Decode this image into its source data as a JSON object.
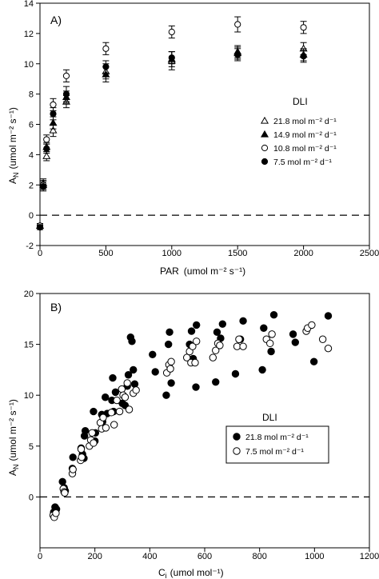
{
  "chart_data": [
    {
      "type": "scatter",
      "panel_label": "A)",
      "xlabel": "PAR",
      "xunits": "(umol m⁻² s⁻¹)",
      "ylabel": "A",
      "ylabel_sub": "N",
      "yunits": "(umol m⁻² s⁻¹)",
      "xlim": [
        0,
        2500
      ],
      "ylim": [
        -2,
        14
      ],
      "xticks": [
        0,
        500,
        1000,
        1500,
        2000,
        2500
      ],
      "yticks": [
        -2,
        0,
        2,
        4,
        6,
        8,
        10,
        12,
        14
      ],
      "reference_line": {
        "y": 0,
        "style": "dashed"
      },
      "legend": {
        "title": "DLI",
        "position": "middle-right"
      },
      "series": [
        {
          "name": "21.8 mol m⁻² d⁻¹",
          "marker": "open-triangle",
          "x": [
            0,
            25,
            50,
            100,
            200,
            500,
            1000,
            1500,
            2000
          ],
          "y": [
            -0.7,
            2.0,
            3.9,
            5.6,
            7.5,
            9.5,
            10.2,
            10.8,
            11.0
          ],
          "err": [
            0.15,
            0.3,
            0.3,
            0.4,
            0.4,
            0.5,
            0.6,
            0.4,
            0.4
          ]
        },
        {
          "name": "14.9 mol m⁻² d⁻¹",
          "marker": "filled-triangle",
          "x": [
            0,
            25,
            50,
            100,
            200,
            500,
            1000,
            1500,
            2000
          ],
          "y": [
            -0.7,
            2.1,
            4.5,
            6.1,
            7.8,
            9.3,
            10.3,
            10.7,
            10.6
          ],
          "err": [
            0.15,
            0.3,
            0.3,
            0.4,
            0.4,
            0.5,
            0.5,
            0.4,
            0.4
          ]
        },
        {
          "name": "10.8 mol m⁻² d⁻¹",
          "marker": "open-circle",
          "x": [
            0,
            25,
            50,
            100,
            200,
            500,
            1000,
            1500,
            2000
          ],
          "y": [
            -0.7,
            2.0,
            5.0,
            7.3,
            9.2,
            11.0,
            12.1,
            12.6,
            12.4
          ],
          "err": [
            0.15,
            0.3,
            0.3,
            0.4,
            0.4,
            0.4,
            0.4,
            0.5,
            0.4
          ]
        },
        {
          "name": "7.5 mol m⁻² d⁻¹",
          "marker": "filled-circle",
          "x": [
            0,
            25,
            50,
            100,
            200,
            500,
            1000,
            1500,
            2000
          ],
          "y": [
            -0.8,
            1.9,
            4.4,
            6.7,
            8.0,
            9.8,
            10.4,
            10.6,
            10.5
          ],
          "err": [
            0.15,
            0.3,
            0.3,
            0.4,
            0.5,
            0.4,
            0.4,
            0.4,
            0.4
          ]
        }
      ]
    },
    {
      "type": "scatter",
      "panel_label": "B)",
      "xlabel": "C",
      "xlabel_sub": "i",
      "xunits": "(umol mol⁻¹)",
      "ylabel": "A",
      "ylabel_sub": "N",
      "yunits": "(umol m⁻² s⁻¹)",
      "xlim": [
        0,
        1200
      ],
      "ylim": [
        -5,
        20
      ],
      "xticks": [
        0,
        200,
        400,
        600,
        800,
        1000,
        1200
      ],
      "yticks": [
        0,
        5,
        10,
        15,
        20
      ],
      "reference_line": {
        "y": 0,
        "style": "dashed"
      },
      "legend": {
        "title": "DLI",
        "position": "middle-right"
      },
      "series": [
        {
          "name": "21.8 mol m⁻² d⁻¹",
          "marker": "filled-circle",
          "points": [
            [
              50,
              -1.5
            ],
            [
              55,
              -1.0
            ],
            [
              60,
              -1.2
            ],
            [
              82,
              1.5
            ],
            [
              88,
              0.9
            ],
            [
              92,
              0.6
            ],
            [
              118,
              2.8
            ],
            [
              120,
              3.9
            ],
            [
              150,
              4.8
            ],
            [
              155,
              4.2
            ],
            [
              160,
              3.8
            ],
            [
              162,
              6.0
            ],
            [
              165,
              6.5
            ],
            [
              195,
              8.4
            ],
            [
              200,
              5.5
            ],
            [
              202,
              6.3
            ],
            [
              225,
              8.1
            ],
            [
              228,
              7.4
            ],
            [
              238,
              9.8
            ],
            [
              245,
              8.2
            ],
            [
              262,
              9.5
            ],
            [
              265,
              11.7
            ],
            [
              268,
              8.4
            ],
            [
              275,
              10.3
            ],
            [
              300,
              9.2
            ],
            [
              310,
              9.0
            ],
            [
              318,
              10.9
            ],
            [
              322,
              12.0
            ],
            [
              330,
              15.7
            ],
            [
              335,
              15.3
            ],
            [
              340,
              12.5
            ],
            [
              345,
              11.1
            ],
            [
              410,
              14.0
            ],
            [
              420,
              12.3
            ],
            [
              460,
              10.0
            ],
            [
              468,
              15.0
            ],
            [
              472,
              16.2
            ],
            [
              478,
              11.2
            ],
            [
              545,
              15.0
            ],
            [
              552,
              16.3
            ],
            [
              558,
              13.6
            ],
            [
              568,
              10.8
            ],
            [
              570,
              16.9
            ],
            [
              640,
              11.3
            ],
            [
              645,
              16.2
            ],
            [
              658,
              15.6
            ],
            [
              665,
              17.0
            ],
            [
              712,
              12.1
            ],
            [
              730,
              15.5
            ],
            [
              740,
              17.3
            ],
            [
              810,
              12.5
            ],
            [
              815,
              16.6
            ],
            [
              842,
              14.3
            ],
            [
              852,
              17.9
            ],
            [
              922,
              16.0
            ],
            [
              930,
              15.2
            ],
            [
              998,
              13.3
            ],
            [
              1050,
              17.8
            ]
          ]
        },
        {
          "name": "7.5 mol m⁻² d⁻¹",
          "marker": "open-circle",
          "points": [
            [
              48,
              -1.8
            ],
            [
              52,
              -2.0
            ],
            [
              58,
              -1.6
            ],
            [
              85,
              0.8
            ],
            [
              88,
              0.5
            ],
            [
              90,
              0.4
            ],
            [
              118,
              2.3
            ],
            [
              120,
              2.7
            ],
            [
              148,
              3.6
            ],
            [
              150,
              4.7
            ],
            [
              152,
              3.9
            ],
            [
              180,
              5.0
            ],
            [
              185,
              5.6
            ],
            [
              190,
              6.3
            ],
            [
              195,
              5.3
            ],
            [
              220,
              7.3
            ],
            [
              225,
              6.7
            ],
            [
              230,
              7.8
            ],
            [
              240,
              6.8
            ],
            [
              260,
              8.3
            ],
            [
              270,
              7.1
            ],
            [
              280,
              9.5
            ],
            [
              290,
              8.4
            ],
            [
              298,
              10.6
            ],
            [
              303,
              10.0
            ],
            [
              310,
              9.8
            ],
            [
              318,
              11.2
            ],
            [
              325,
              8.6
            ],
            [
              340,
              10.2
            ],
            [
              350,
              10.5
            ],
            [
              462,
              12.2
            ],
            [
              470,
              13.0
            ],
            [
              475,
              12.6
            ],
            [
              478,
              13.3
            ],
            [
              535,
              13.7
            ],
            [
              545,
              14.3
            ],
            [
              550,
              13.2
            ],
            [
              556,
              14.8
            ],
            [
              565,
              13.2
            ],
            [
              570,
              15.3
            ],
            [
              630,
              13.7
            ],
            [
              640,
              14.4
            ],
            [
              648,
              15.1
            ],
            [
              655,
              14.9
            ],
            [
              718,
              14.8
            ],
            [
              725,
              15.5
            ],
            [
              740,
              14.8
            ],
            [
              825,
              15.5
            ],
            [
              838,
              15.1
            ],
            [
              845,
              16.0
            ],
            [
              970,
              16.3
            ],
            [
              975,
              16.6
            ],
            [
              990,
              16.9
            ],
            [
              1030,
              15.5
            ],
            [
              1050,
              14.6
            ]
          ]
        }
      ]
    }
  ]
}
